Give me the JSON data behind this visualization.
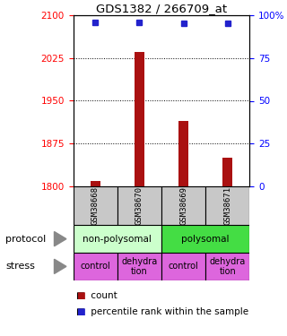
{
  "title": "GDS1382 / 266709_at",
  "samples": [
    "GSM38668",
    "GSM38670",
    "GSM38669",
    "GSM38671"
  ],
  "bar_values": [
    1810,
    2035,
    1915,
    1850
  ],
  "bar_base": 1800,
  "percentile_values": [
    96,
    96,
    95,
    95
  ],
  "ylim": [
    1800,
    2100
  ],
  "y_left_ticks": [
    1800,
    1875,
    1950,
    2025,
    2100
  ],
  "y_right_ticks": [
    0,
    25,
    50,
    75,
    100
  ],
  "bar_color": "#aa1111",
  "dot_color": "#2222cc",
  "protocol_color_np": "#ccffcc",
  "protocol_color_p": "#44dd44",
  "stress_color": "#dd66dd",
  "sample_bg_color": "#c8c8c8",
  "stress_labels": [
    "control",
    "dehydra\ntion",
    "control",
    "dehydra\ntion"
  ]
}
